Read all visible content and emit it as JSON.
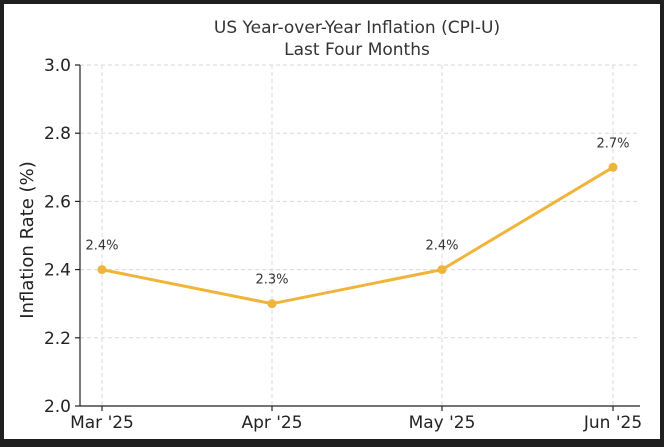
{
  "chart_data": {
    "type": "line",
    "title": "US Year-over-Year Inflation (CPI-U)",
    "subtitle": "Last Four Months",
    "xlabel": "",
    "ylabel": "Inflation Rate (%)",
    "categories": [
      "Mar '25",
      "Apr '25",
      "May '25",
      "Jun '25"
    ],
    "series": [
      {
        "values": [
          2.4,
          2.3,
          2.4,
          2.7
        ],
        "color": "#f0b43c"
      }
    ],
    "data_labels": [
      "2.4%",
      "2.3%",
      "2.4%",
      "2.7%"
    ],
    "ylim": [
      2.0,
      3.0
    ],
    "yticks": [
      "2.0",
      "2.2",
      "2.4",
      "2.6",
      "2.8",
      "3.0"
    ],
    "grid": true,
    "legend": "none"
  }
}
